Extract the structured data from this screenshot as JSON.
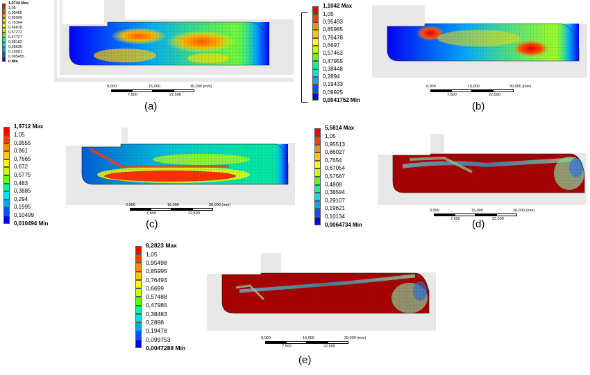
{
  "colors": {
    "bands": [
      "#0000ff",
      "#0054ff",
      "#00a8ff",
      "#00e0ee",
      "#00ff8c",
      "#5fff00",
      "#c8ff00",
      "#ffff00",
      "#ffc800",
      "#ff8c00",
      "#ff3c00",
      "#ff0000"
    ],
    "geometry": "#e8e8e8",
    "mesh": "#2a2a2a"
  },
  "panels": [
    {
      "caption": "(a)",
      "legend": [
        "1,0744 Max",
        "1,05",
        "0,95455",
        "0,85909",
        "0,76364",
        "0,66818",
        "0,57273",
        "0,47727",
        "0,38182",
        "0,28636",
        "0,19091",
        "0,095455",
        "0 Min"
      ],
      "scale": {
        "top": [
          "0,000",
          "15,000",
          "30,000 (mm)"
        ],
        "bottom": [
          "7,500",
          "22,500"
        ]
      }
    },
    {
      "caption": "(b)",
      "legend": [
        "1,1042 Max",
        "1,05",
        "0,95493",
        "0,85985",
        "0,76478",
        "0,6697",
        "0,57463",
        "0,47955",
        "0,38448",
        "0,2894",
        "0,19433",
        "0,09925",
        "0,0041752 Min"
      ],
      "scale": {
        "top": [
          "0,000",
          "15,000",
          "30,000 (mm)"
        ],
        "bottom": [
          "7,500",
          "22,500"
        ]
      }
    },
    {
      "caption": "(c)",
      "legend": [
        "1,9712 Max",
        "1,05",
        "0,9555",
        "0,861",
        "0,7665",
        "0,672",
        "0,5775",
        "0,483",
        "0,3885",
        "0,294",
        "0,1995",
        "0,10499",
        "0,010494 Min"
      ],
      "scale": {
        "top": [
          "0,000",
          "15,000",
          "30,000 (mm)"
        ],
        "bottom": [
          "7,500",
          "22,500"
        ]
      }
    },
    {
      "caption": "(d)",
      "legend": [
        "5,5814 Max",
        "1,05",
        "0,95513",
        "0,86027",
        "0,7654",
        "0,67054",
        "0,57567",
        "0,4808",
        "0,38594",
        "0,29107",
        "0,19621",
        "0,10134",
        "0,0064734 Min"
      ],
      "scale": {
        "top": [
          "0,000",
          "15,000",
          "30,000 (mm)"
        ],
        "bottom": [
          "7,500",
          "22,500"
        ]
      }
    },
    {
      "caption": "(e)",
      "legend": [
        "8,2823 Max",
        "1,05",
        "0,95498",
        "0,85995",
        "0,76493",
        "0,6699",
        "0,57488",
        "0,47985",
        "0,38483",
        "0,2898",
        "0,19478",
        "0,099753",
        "0,0047288 Min"
      ],
      "scale": {
        "top": [
          "0,000",
          "15,000",
          "30,000 (mm)"
        ],
        "bottom": [
          "7,500",
          "22,500"
        ]
      }
    }
  ]
}
